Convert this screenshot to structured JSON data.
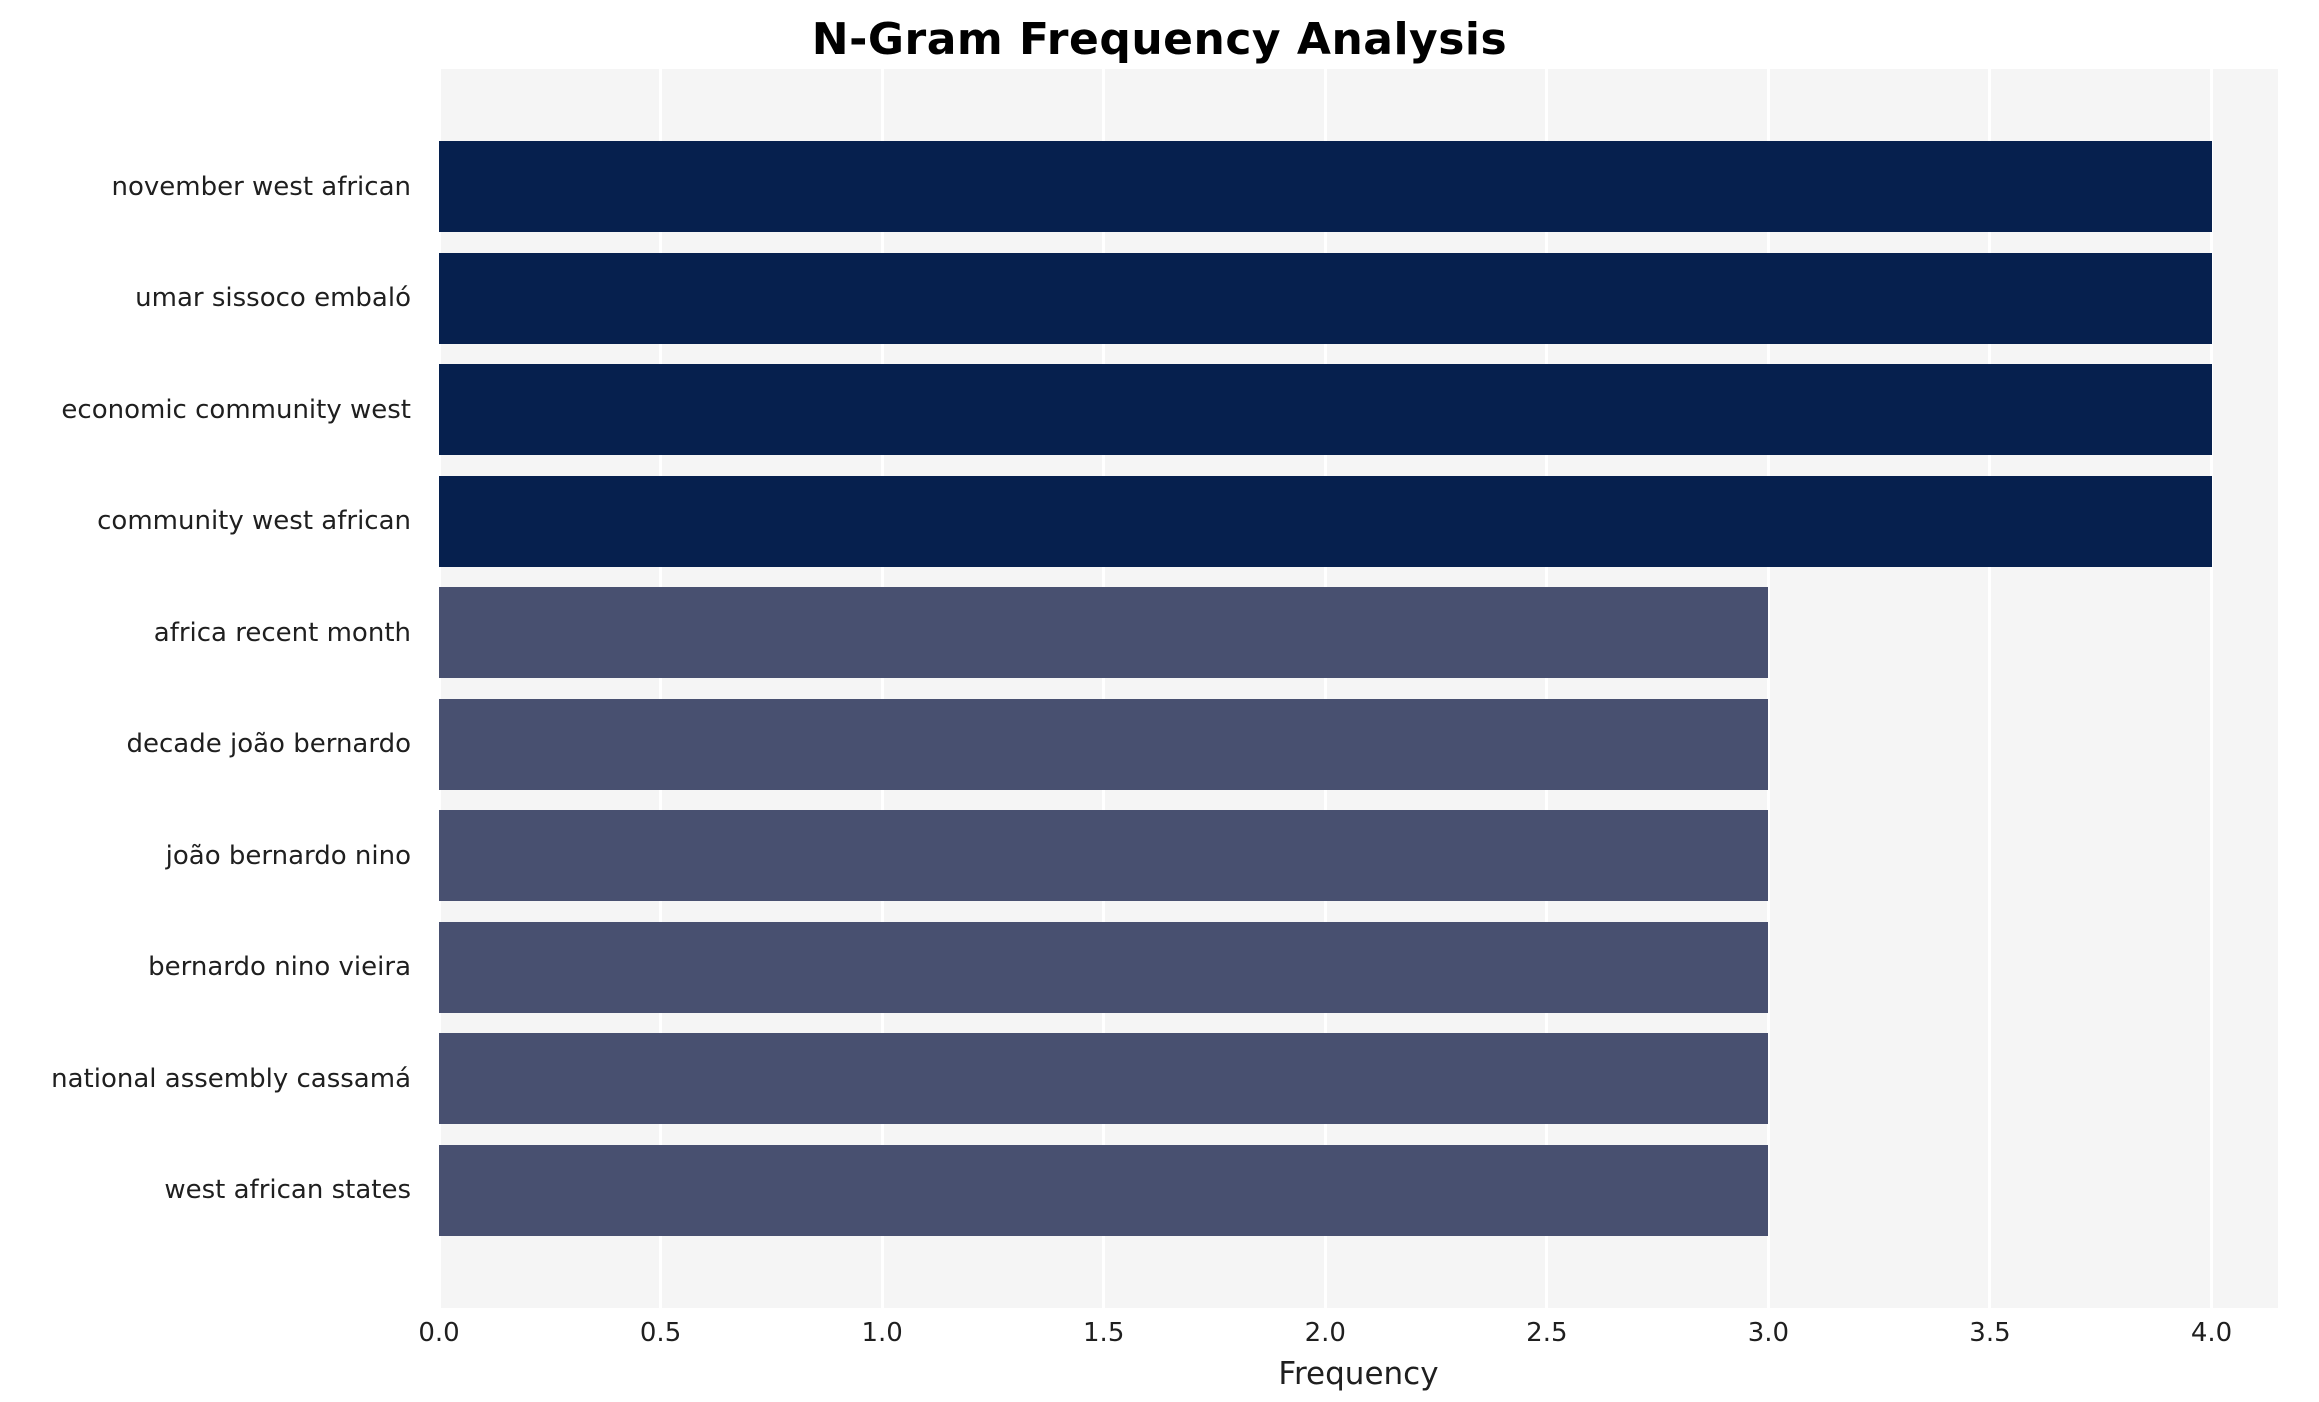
{
  "chart_data": {
    "type": "bar",
    "orientation": "horizontal",
    "title": "N-Gram Frequency Analysis",
    "xlabel": "Frequency",
    "ylabel": "",
    "categories": [
      "november west african",
      "umar sissoco embaló",
      "economic community west",
      "community west african",
      "africa recent month",
      "decade joão bernardo",
      "joão bernardo nino",
      "bernardo nino vieira",
      "national assembly cassamá",
      "west african states"
    ],
    "values": [
      4,
      4,
      4,
      4,
      3,
      3,
      3,
      3,
      3,
      3
    ],
    "bar_colors": [
      "#06204e",
      "#06204e",
      "#06204e",
      "#06204e",
      "#485070",
      "#485070",
      "#485070",
      "#485070",
      "#485070",
      "#485070"
    ],
    "xlim": [
      0,
      4.15
    ],
    "xticks": [
      0.0,
      0.5,
      1.0,
      1.5,
      2.0,
      2.5,
      3.0,
      3.5,
      4.0
    ],
    "xtick_labels": [
      "0.0",
      "0.5",
      "1.0",
      "1.5",
      "2.0",
      "2.5",
      "3.0",
      "3.5",
      "4.0"
    ],
    "grid": true,
    "grid_color": "#ffffff",
    "plot_background": "#f5f5f5",
    "legend": "none"
  }
}
